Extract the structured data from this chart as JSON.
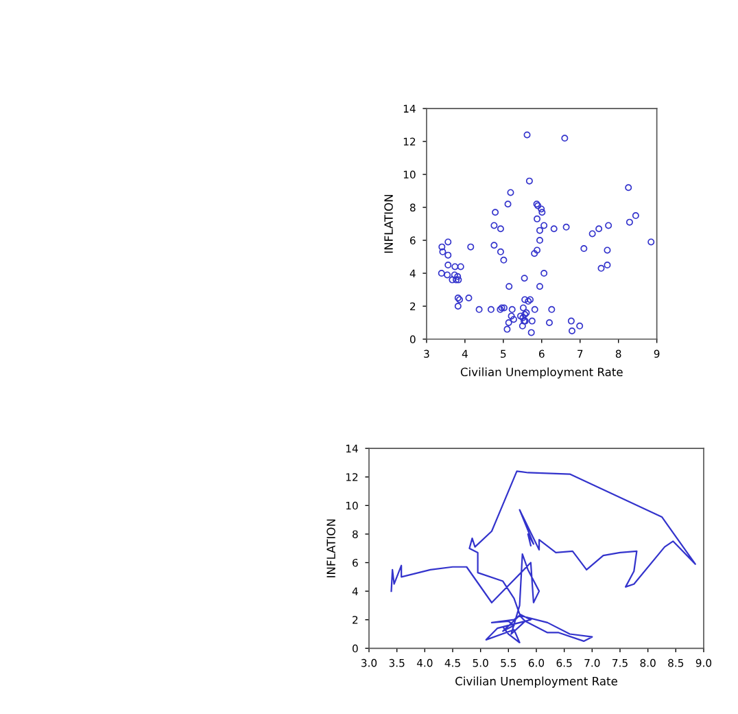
{
  "chart_data": [
    {
      "type": "scatter",
      "xlabel": "Civilian Unemployment Rate",
      "ylabel": "INFLATION",
      "marker": "circle",
      "grid": false,
      "legend": false,
      "xlim": [
        3,
        9
      ],
      "xticks": [
        3,
        4,
        5,
        6,
        7,
        8,
        9
      ],
      "ylim": [
        0,
        14
      ],
      "yticks": [
        0,
        2,
        4,
        6,
        8,
        10,
        12,
        14
      ],
      "series": [
        {
          "color": "#3333cc",
          "x": [
            5.62,
            6.6,
            5.68,
            8.26,
            5.19,
            5.12,
            5.87,
            5.9,
            5.99,
            6.01,
            4.79,
            8.45,
            8.29,
            5.88,
            4.76,
            6.06,
            4.93,
            5.95,
            6.32,
            6.64,
            7.49,
            7.74,
            7.32,
            5.95,
            8.85,
            3.56,
            4.15,
            3.4,
            4.76,
            3.42,
            4.93,
            7.1,
            5.88,
            5.81,
            7.71,
            3.56,
            5.01,
            3.56,
            3.74,
            3.89,
            7.55,
            7.71,
            3.39,
            3.54,
            3.73,
            3.81,
            3.77,
            3.67,
            3.83,
            6.06,
            5.55,
            5.15,
            5.95,
            3.82,
            3.86,
            4.1,
            3.82,
            5.56,
            5.65,
            5.7,
            4.37,
            4.68,
            4.92,
            4.96,
            5.02,
            5.23,
            5.52,
            5.82,
            6.26,
            5.6,
            5.21,
            5.27,
            5.45,
            5.51,
            5.56,
            5.54,
            5.57,
            5.75,
            5.14,
            5.1,
            5.5,
            5.73,
            6.2,
            6.77,
            6.79,
            6.99
          ],
          "values": [
            12.4,
            12.2,
            9.6,
            9.2,
            8.9,
            8.2,
            8.2,
            8.1,
            7.9,
            7.7,
            7.7,
            7.5,
            7.1,
            7.3,
            6.9,
            6.9,
            6.7,
            6.6,
            6.7,
            6.8,
            6.7,
            6.9,
            6.4,
            6.0,
            5.9,
            5.9,
            5.6,
            5.6,
            5.7,
            5.3,
            5.3,
            5.5,
            5.4,
            5.2,
            5.4,
            5.1,
            4.8,
            4.5,
            4.4,
            4.4,
            4.3,
            4.5,
            4.0,
            3.9,
            3.9,
            3.8,
            3.6,
            3.6,
            3.6,
            4.0,
            3.7,
            3.2,
            3.2,
            2.5,
            2.4,
            2.5,
            2.0,
            2.4,
            2.3,
            2.4,
            1.8,
            1.8,
            1.8,
            1.9,
            1.9,
            1.8,
            1.9,
            1.8,
            1.8,
            1.6,
            1.4,
            1.2,
            1.4,
            1.3,
            1.5,
            1.1,
            1.1,
            1.1,
            1.0,
            0.6,
            0.8,
            0.4,
            1.0,
            1.1,
            0.5,
            0.8
          ]
        }
      ]
    },
    {
      "type": "line",
      "xlabel": "Civilian Unemployment Rate",
      "ylabel": "INFLATION",
      "marker": "none",
      "line_style": "solid",
      "grid": false,
      "legend": false,
      "xlim": [
        3,
        9
      ],
      "xticks": [
        {
          "value": 3,
          "label": "3.0"
        },
        {
          "value": 3.5,
          "label": "3.5"
        },
        {
          "value": 4,
          "label": "4.0"
        },
        {
          "value": 4.5,
          "label": "4.5"
        },
        {
          "value": 5,
          "label": "5.0"
        },
        {
          "value": 5.5,
          "label": "5.5"
        },
        {
          "value": 6,
          "label": "6.0"
        },
        {
          "value": 6.5,
          "label": "6.5"
        },
        {
          "value": 7,
          "label": "7.0"
        },
        {
          "value": 7.5,
          "label": "7.5"
        },
        {
          "value": 8,
          "label": "8.0"
        },
        {
          "value": 8.5,
          "label": "8.5"
        },
        {
          "value": 9,
          "label": "9.0"
        }
      ],
      "ylim": [
        0,
        14
      ],
      "yticks": [
        0,
        2,
        4,
        6,
        8,
        10,
        12,
        14
      ],
      "series": [
        {
          "color": "#3333cc",
          "x": [
            3.4,
            3.42,
            3.45,
            3.55,
            3.58,
            3.58,
            4.1,
            4.5,
            4.75,
            5.2,
            5.9,
            5.95,
            6.05,
            5.85,
            5.75,
            5.7,
            5.55,
            5.8,
            5.7,
            5.4,
            5.6,
            5.5,
            5.2,
            5.6,
            5.7,
            6.2,
            6.6,
            7.0,
            6.85,
            6.4,
            6.2,
            5.8,
            5.3,
            5.1,
            5.6,
            5.7,
            5.5,
            5.4,
            5.7,
            5.9,
            5.7,
            5.6,
            5.4,
            4.95,
            4.95,
            4.8,
            4.85,
            4.9,
            5.2,
            5.65,
            5.85,
            6.6,
            8.25,
            8.85,
            8.45,
            8.3,
            7.75,
            7.6,
            7.75,
            7.8,
            7.5,
            7.2,
            6.9,
            6.65,
            6.35,
            6.05,
            6.05,
            5.7,
            5.95,
            5.85,
            5.9
          ],
          "values": [
            4.0,
            5.5,
            4.5,
            5.5,
            5.8,
            5.0,
            5.5,
            5.7,
            5.7,
            3.2,
            6.0,
            3.2,
            4.0,
            5.5,
            6.6,
            3.0,
            1.0,
            1.9,
            2.3,
            1.2,
            1.6,
            1.9,
            1.8,
            2.0,
            2.3,
            1.8,
            1.0,
            0.8,
            0.5,
            1.1,
            1.1,
            1.9,
            1.4,
            0.6,
            1.3,
            0.4,
            1.0,
            1.5,
            1.8,
            2.0,
            2.4,
            3.5,
            4.7,
            5.3,
            6.7,
            7.0,
            7.7,
            7.1,
            8.2,
            12.4,
            12.3,
            12.2,
            9.2,
            5.9,
            7.5,
            7.1,
            4.5,
            4.3,
            5.4,
            6.8,
            6.7,
            6.5,
            5.5,
            6.8,
            6.7,
            7.6,
            6.9,
            9.7,
            7.3,
            8.0,
            7.2
          ]
        }
      ]
    }
  ]
}
